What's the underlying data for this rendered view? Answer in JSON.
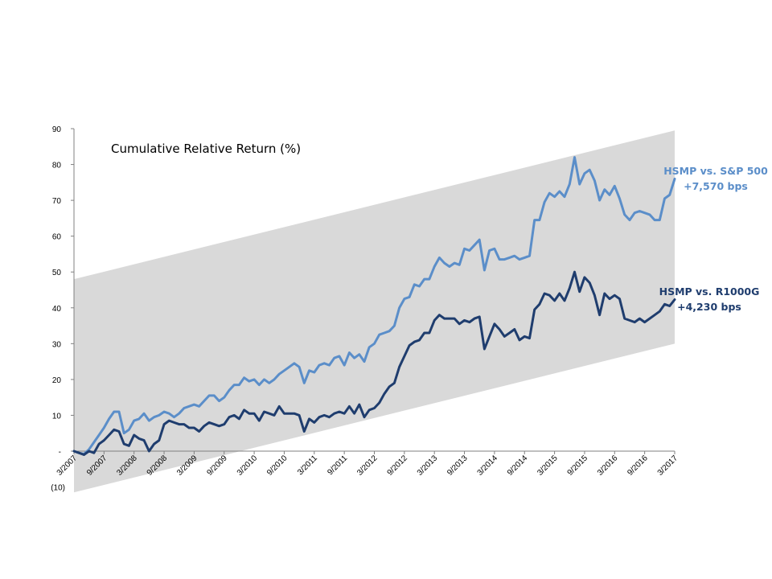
{
  "colors": {
    "band": "#d9d9d9",
    "sp500": "#5b8ec9",
    "r1000g": "#1f3d6e",
    "axis": "#808080"
  },
  "chart_data": {
    "type": "line",
    "title": "Cumulative Relative Return (%)",
    "xlabel": "",
    "ylabel": "",
    "ylim": [
      -10,
      90
    ],
    "y_ticks": [
      {
        "value": 90,
        "label": "90"
      },
      {
        "value": 80,
        "label": "80"
      },
      {
        "value": 70,
        "label": "70"
      },
      {
        "value": 60,
        "label": "60"
      },
      {
        "value": 50,
        "label": "50"
      },
      {
        "value": 40,
        "label": "40"
      },
      {
        "value": 30,
        "label": "30"
      },
      {
        "value": 20,
        "label": "20"
      },
      {
        "value": 10,
        "label": "10"
      },
      {
        "value": 0,
        "label": "-"
      },
      {
        "value": -10,
        "label": "(10)"
      }
    ],
    "x_range": [
      2007.167,
      2017.167
    ],
    "x_ticks": [
      {
        "value": 2007.167,
        "label": "3/2007"
      },
      {
        "value": 2007.667,
        "label": "9/2007"
      },
      {
        "value": 2008.167,
        "label": "3/2008"
      },
      {
        "value": 2008.667,
        "label": "9/2008"
      },
      {
        "value": 2009.167,
        "label": "3/2009"
      },
      {
        "value": 2009.667,
        "label": "9/2009"
      },
      {
        "value": 2010.167,
        "label": "3/2010"
      },
      {
        "value": 2010.667,
        "label": "9/2010"
      },
      {
        "value": 2011.167,
        "label": "3/2011"
      },
      {
        "value": 2011.667,
        "label": "9/2011"
      },
      {
        "value": 2012.167,
        "label": "3/2012"
      },
      {
        "value": 2012.667,
        "label": "9/2012"
      },
      {
        "value": 2013.167,
        "label": "3/2013"
      },
      {
        "value": 2013.667,
        "label": "9/2013"
      },
      {
        "value": 2014.167,
        "label": "3/2014"
      },
      {
        "value": 2014.667,
        "label": "9/2014"
      },
      {
        "value": 2015.167,
        "label": "3/2015"
      },
      {
        "value": 2015.667,
        "label": "9/2015"
      },
      {
        "value": 2016.167,
        "label": "3/2016"
      },
      {
        "value": 2016.667,
        "label": "9/2016"
      },
      {
        "value": 2017.167,
        "label": "3/2017"
      }
    ],
    "band": {
      "lower": [
        -11.5,
        30
      ],
      "upper": [
        48,
        89.5
      ]
    },
    "series": [
      {
        "name": "HSMP vs. S&P 500",
        "annotation": [
          "HSMP vs. S&P 500",
          "+7,570 bps"
        ],
        "points": [
          [
            2007.167,
            0
          ],
          [
            2007.25,
            -0.5
          ],
          [
            2007.333,
            -0.8
          ],
          [
            2007.417,
            0.5
          ],
          [
            2007.5,
            2.5
          ],
          [
            2007.583,
            4.5
          ],
          [
            2007.667,
            6.5
          ],
          [
            2007.75,
            9
          ],
          [
            2007.833,
            11
          ],
          [
            2007.917,
            11
          ],
          [
            2008.0,
            5
          ],
          [
            2008.083,
            6
          ],
          [
            2008.167,
            8.5
          ],
          [
            2008.25,
            9
          ],
          [
            2008.333,
            10.5
          ],
          [
            2008.417,
            8.5
          ],
          [
            2008.5,
            9.5
          ],
          [
            2008.583,
            10
          ],
          [
            2008.667,
            11
          ],
          [
            2008.75,
            10.5
          ],
          [
            2008.833,
            9.5
          ],
          [
            2008.917,
            10.5
          ],
          [
            2009.0,
            12
          ],
          [
            2009.083,
            12.5
          ],
          [
            2009.167,
            13
          ],
          [
            2009.25,
            12.5
          ],
          [
            2009.333,
            14
          ],
          [
            2009.417,
            15.5
          ],
          [
            2009.5,
            15.5
          ],
          [
            2009.583,
            14
          ],
          [
            2009.667,
            15
          ],
          [
            2009.75,
            17
          ],
          [
            2009.833,
            18.5
          ],
          [
            2009.917,
            18.5
          ],
          [
            2010.0,
            20.5
          ],
          [
            2010.083,
            19.5
          ],
          [
            2010.167,
            20
          ],
          [
            2010.25,
            18.5
          ],
          [
            2010.333,
            20
          ],
          [
            2010.417,
            19
          ],
          [
            2010.5,
            20
          ],
          [
            2010.583,
            21.5
          ],
          [
            2010.667,
            22.5
          ],
          [
            2010.75,
            23.5
          ],
          [
            2010.833,
            24.5
          ],
          [
            2010.917,
            23.5
          ],
          [
            2011.0,
            19
          ],
          [
            2011.083,
            22.5
          ],
          [
            2011.167,
            22
          ],
          [
            2011.25,
            24
          ],
          [
            2011.333,
            24.5
          ],
          [
            2011.417,
            24
          ],
          [
            2011.5,
            26
          ],
          [
            2011.583,
            26.5
          ],
          [
            2011.667,
            24
          ],
          [
            2011.75,
            27.5
          ],
          [
            2011.833,
            26
          ],
          [
            2011.917,
            27
          ],
          [
            2012.0,
            25
          ],
          [
            2012.083,
            29
          ],
          [
            2012.167,
            30
          ],
          [
            2012.25,
            32.5
          ],
          [
            2012.333,
            33
          ],
          [
            2012.417,
            33.5
          ],
          [
            2012.5,
            35
          ],
          [
            2012.583,
            40
          ],
          [
            2012.667,
            42.5
          ],
          [
            2012.75,
            43
          ],
          [
            2012.833,
            46.5
          ],
          [
            2012.917,
            46
          ],
          [
            2013.0,
            48
          ],
          [
            2013.083,
            48
          ],
          [
            2013.167,
            51.5
          ],
          [
            2013.25,
            54
          ],
          [
            2013.333,
            52.5
          ],
          [
            2013.417,
            51.5
          ],
          [
            2013.5,
            52.5
          ],
          [
            2013.583,
            52
          ],
          [
            2013.667,
            56.5
          ],
          [
            2013.75,
            56
          ],
          [
            2013.833,
            57.5
          ],
          [
            2013.917,
            59
          ],
          [
            2014.0,
            50.5
          ],
          [
            2014.083,
            56
          ],
          [
            2014.167,
            56.5
          ],
          [
            2014.25,
            53.5
          ],
          [
            2014.333,
            53.5
          ],
          [
            2014.417,
            54
          ],
          [
            2014.5,
            54.5
          ],
          [
            2014.583,
            53.5
          ],
          [
            2014.667,
            54
          ],
          [
            2014.75,
            54.5
          ],
          [
            2014.833,
            64.5
          ],
          [
            2014.917,
            64.5
          ],
          [
            2015.0,
            69.5
          ],
          [
            2015.083,
            72
          ],
          [
            2015.167,
            71
          ],
          [
            2015.25,
            72.5
          ],
          [
            2015.333,
            71
          ],
          [
            2015.417,
            74.5
          ],
          [
            2015.5,
            82
          ],
          [
            2015.583,
            74.5
          ],
          [
            2015.667,
            77.5
          ],
          [
            2015.75,
            78.5
          ],
          [
            2015.833,
            75.5
          ],
          [
            2015.917,
            70
          ],
          [
            2016.0,
            73
          ],
          [
            2016.083,
            71.5
          ],
          [
            2016.167,
            74
          ],
          [
            2016.25,
            70.5
          ],
          [
            2016.333,
            66
          ],
          [
            2016.417,
            64.5
          ],
          [
            2016.5,
            66.5
          ],
          [
            2016.583,
            67
          ],
          [
            2016.667,
            66.5
          ],
          [
            2016.75,
            66
          ],
          [
            2016.833,
            64.5
          ],
          [
            2016.917,
            64.5
          ],
          [
            2017.0,
            70.5
          ],
          [
            2017.083,
            71.5
          ],
          [
            2017.167,
            76
          ]
        ]
      },
      {
        "name": "HSMP vs. R1000G",
        "annotation": [
          "HSMP vs. R1000G",
          "+4,230 bps"
        ],
        "points": [
          [
            2007.167,
            0
          ],
          [
            2007.25,
            -0.5
          ],
          [
            2007.333,
            -1
          ],
          [
            2007.417,
            0
          ],
          [
            2007.5,
            -0.5
          ],
          [
            2007.583,
            2
          ],
          [
            2007.667,
            3
          ],
          [
            2007.75,
            4.5
          ],
          [
            2007.833,
            6
          ],
          [
            2007.917,
            5.5
          ],
          [
            2008.0,
            2
          ],
          [
            2008.083,
            1.5
          ],
          [
            2008.167,
            4.5
          ],
          [
            2008.25,
            3.5
          ],
          [
            2008.333,
            3
          ],
          [
            2008.417,
            0
          ],
          [
            2008.5,
            2
          ],
          [
            2008.583,
            3
          ],
          [
            2008.667,
            7.5
          ],
          [
            2008.75,
            8.5
          ],
          [
            2008.833,
            8
          ],
          [
            2008.917,
            7.5
          ],
          [
            2009.0,
            7.5
          ],
          [
            2009.083,
            6.5
          ],
          [
            2009.167,
            6.5
          ],
          [
            2009.25,
            5.5
          ],
          [
            2009.333,
            7
          ],
          [
            2009.417,
            8
          ],
          [
            2009.5,
            7.5
          ],
          [
            2009.583,
            7
          ],
          [
            2009.667,
            7.5
          ],
          [
            2009.75,
            9.5
          ],
          [
            2009.833,
            10
          ],
          [
            2009.917,
            9
          ],
          [
            2010.0,
            11.5
          ],
          [
            2010.083,
            10.5
          ],
          [
            2010.167,
            10.5
          ],
          [
            2010.25,
            8.5
          ],
          [
            2010.333,
            11
          ],
          [
            2010.417,
            10.5
          ],
          [
            2010.5,
            10
          ],
          [
            2010.583,
            12.5
          ],
          [
            2010.667,
            10.5
          ],
          [
            2010.75,
            10.5
          ],
          [
            2010.833,
            10.5
          ],
          [
            2010.917,
            10
          ],
          [
            2011.0,
            5.5
          ],
          [
            2011.083,
            9
          ],
          [
            2011.167,
            8
          ],
          [
            2011.25,
            9.5
          ],
          [
            2011.333,
            10
          ],
          [
            2011.417,
            9.5
          ],
          [
            2011.5,
            10.5
          ],
          [
            2011.583,
            11
          ],
          [
            2011.667,
            10.5
          ],
          [
            2011.75,
            12.5
          ],
          [
            2011.833,
            10.5
          ],
          [
            2011.917,
            13
          ],
          [
            2012.0,
            9.5
          ],
          [
            2012.083,
            11.5
          ],
          [
            2012.167,
            12
          ],
          [
            2012.25,
            13.5
          ],
          [
            2012.333,
            16
          ],
          [
            2012.417,
            18
          ],
          [
            2012.5,
            19
          ],
          [
            2012.583,
            23.5
          ],
          [
            2012.667,
            26.5
          ],
          [
            2012.75,
            29.5
          ],
          [
            2012.833,
            30.5
          ],
          [
            2012.917,
            31
          ],
          [
            2013.0,
            33
          ],
          [
            2013.083,
            33
          ],
          [
            2013.167,
            36.5
          ],
          [
            2013.25,
            38
          ],
          [
            2013.333,
            37
          ],
          [
            2013.417,
            37
          ],
          [
            2013.5,
            37
          ],
          [
            2013.583,
            35.5
          ],
          [
            2013.667,
            36.5
          ],
          [
            2013.75,
            36
          ],
          [
            2013.833,
            37
          ],
          [
            2013.917,
            37.5
          ],
          [
            2014.0,
            28.5
          ],
          [
            2014.083,
            32
          ],
          [
            2014.167,
            35.5
          ],
          [
            2014.25,
            34
          ],
          [
            2014.333,
            32
          ],
          [
            2014.417,
            33
          ],
          [
            2014.5,
            34
          ],
          [
            2014.583,
            31
          ],
          [
            2014.667,
            32
          ],
          [
            2014.75,
            31.5
          ],
          [
            2014.833,
            39.5
          ],
          [
            2014.917,
            41
          ],
          [
            2015.0,
            44
          ],
          [
            2015.083,
            43.5
          ],
          [
            2015.167,
            42
          ],
          [
            2015.25,
            44
          ],
          [
            2015.333,
            42
          ],
          [
            2015.417,
            45.5
          ],
          [
            2015.5,
            50
          ],
          [
            2015.583,
            44.5
          ],
          [
            2015.667,
            48.5
          ],
          [
            2015.75,
            47
          ],
          [
            2015.833,
            43.5
          ],
          [
            2015.917,
            38
          ],
          [
            2016.0,
            44
          ],
          [
            2016.083,
            42.5
          ],
          [
            2016.167,
            43.5
          ],
          [
            2016.25,
            42.5
          ],
          [
            2016.333,
            37
          ],
          [
            2016.417,
            36.5
          ],
          [
            2016.5,
            36
          ],
          [
            2016.583,
            37
          ],
          [
            2016.667,
            36
          ],
          [
            2016.75,
            37
          ],
          [
            2016.833,
            38
          ],
          [
            2016.917,
            39
          ],
          [
            2017.0,
            41
          ],
          [
            2017.083,
            40.5
          ],
          [
            2017.167,
            42.3
          ]
        ]
      }
    ]
  }
}
